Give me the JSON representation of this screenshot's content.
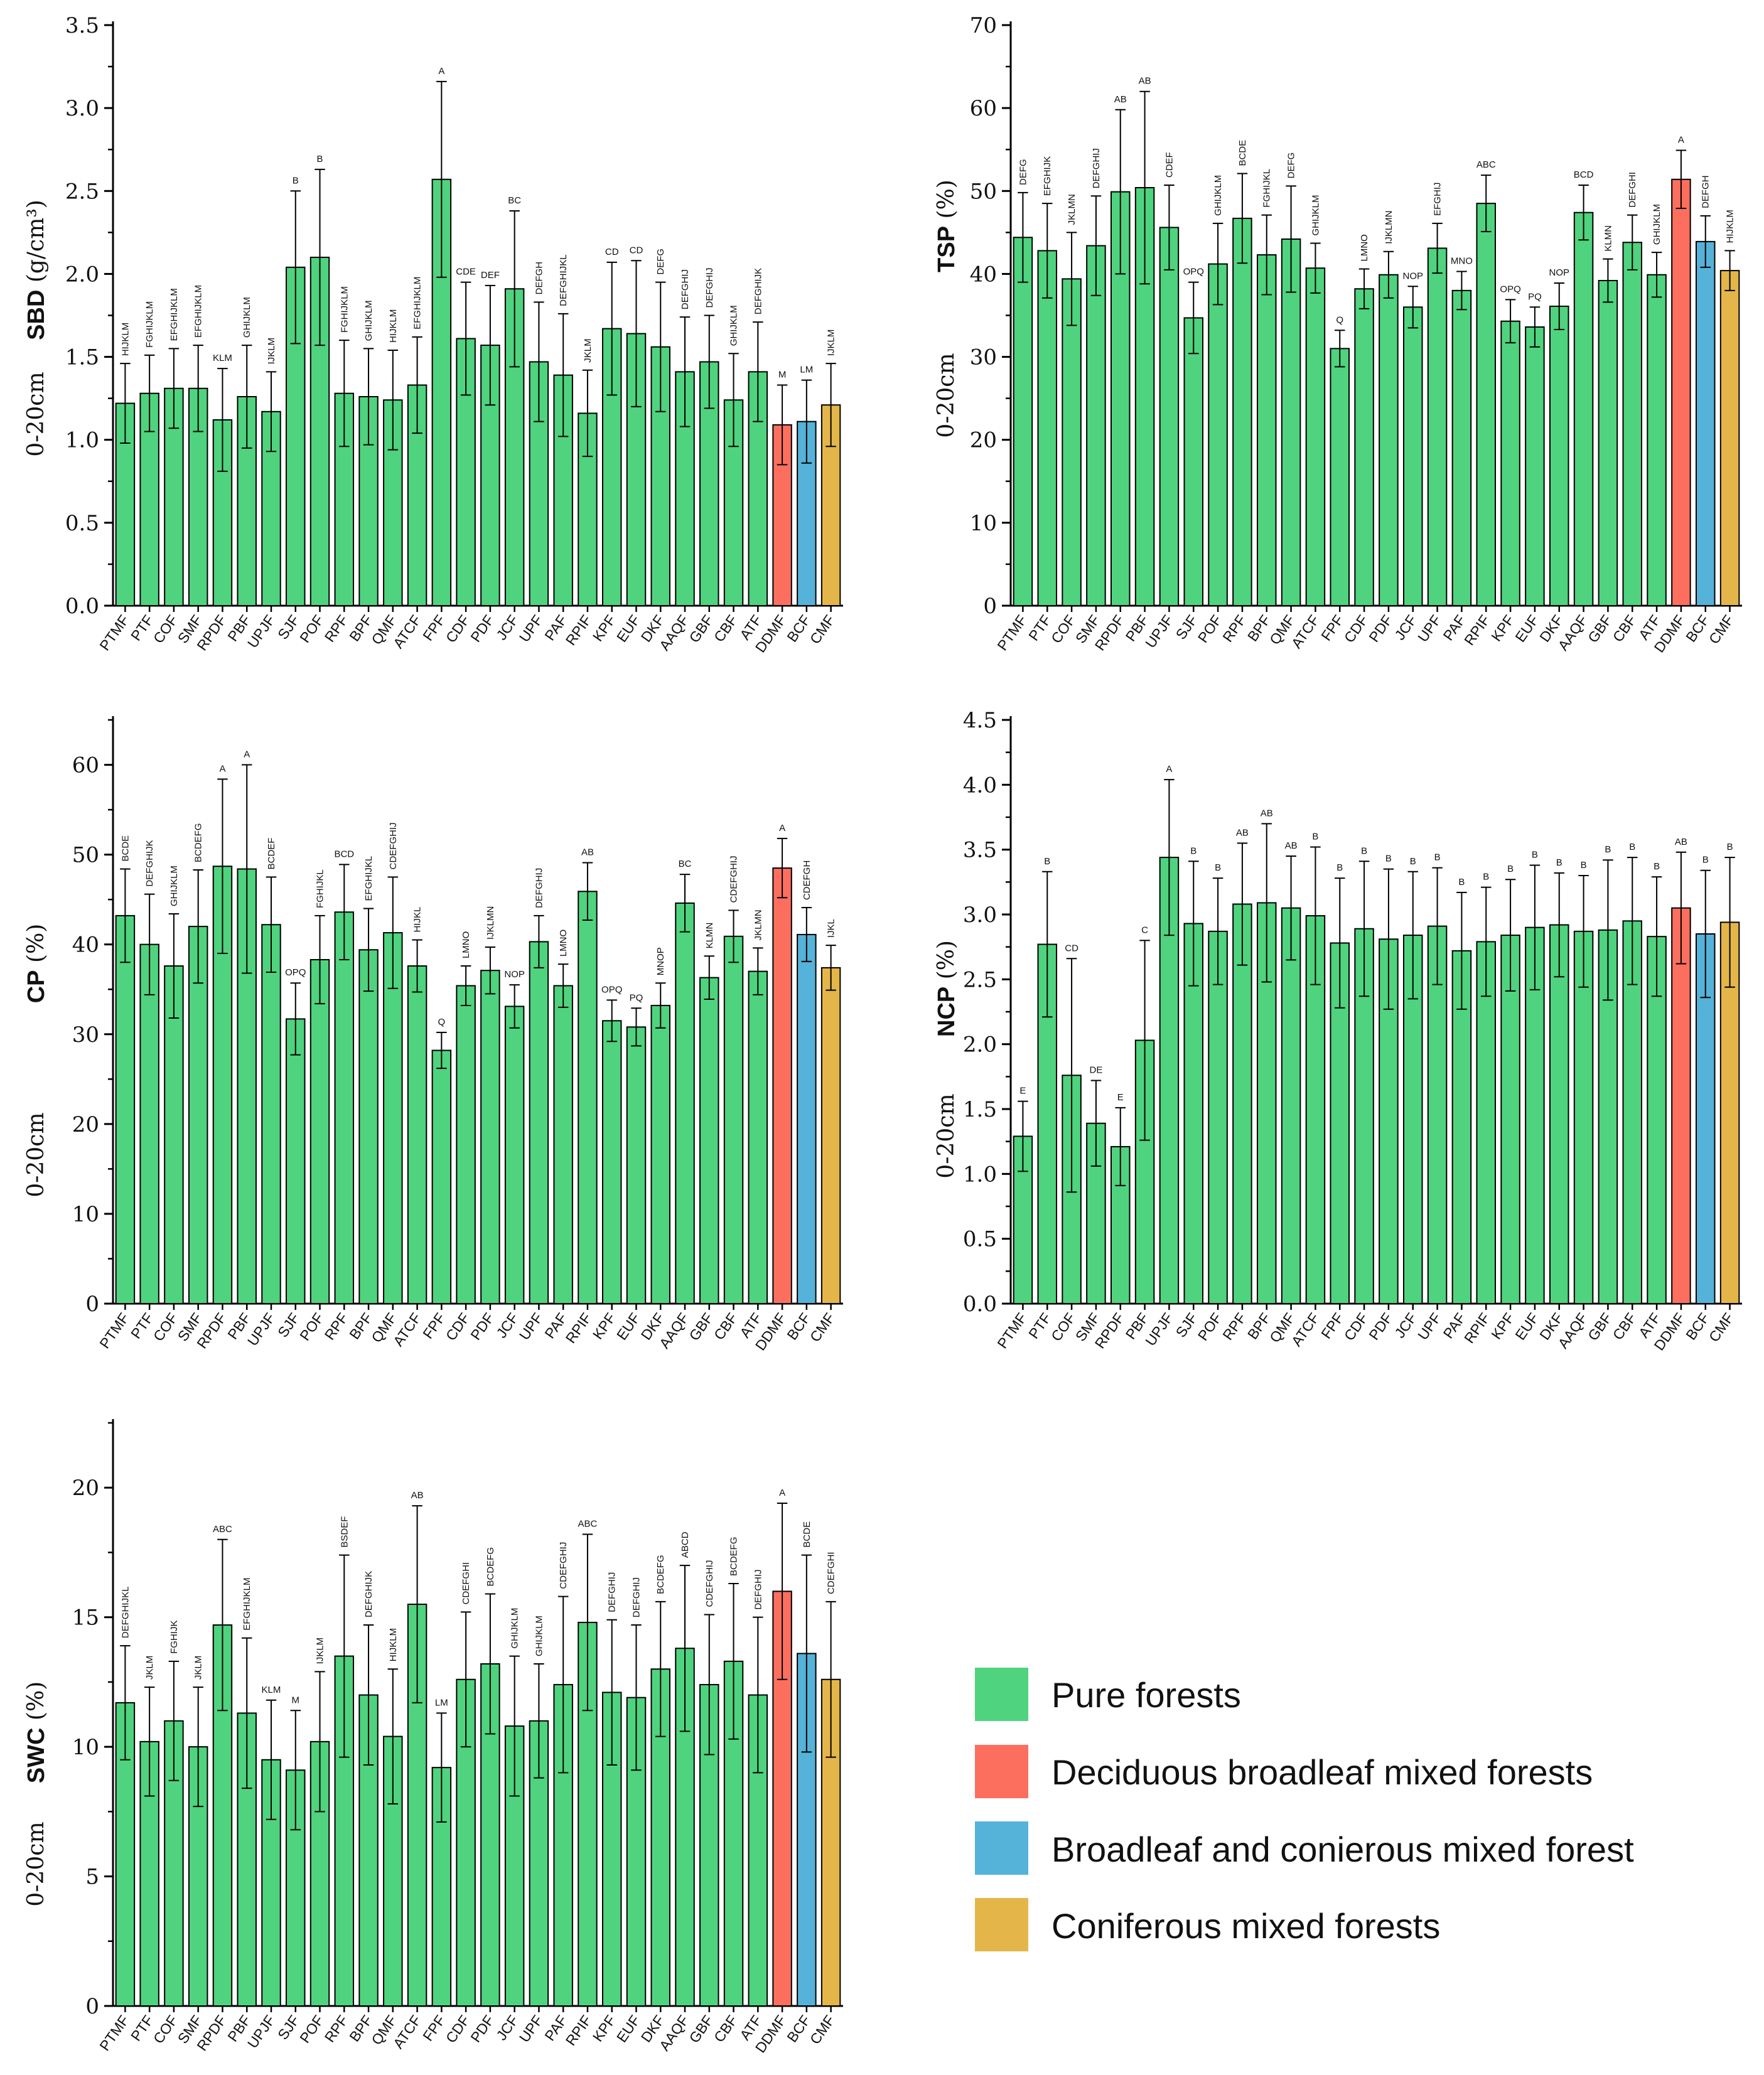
{
  "categories": [
    "PTMF",
    "PTF",
    "COF",
    "SMF",
    "RPDF",
    "PBF",
    "UPJF",
    "SJF",
    "POF",
    "RPF",
    "BPF",
    "QMF",
    "ATCF",
    "FPF",
    "CDF",
    "PDF",
    "JCF",
    "UPF",
    "PAF",
    "RPIF",
    "KPF",
    "EUF",
    "DKF",
    "AAQF",
    "GBF",
    "CBF",
    "ATF",
    "DDMF",
    "BCF",
    "CMF"
  ],
  "colors": {
    "pure": "#4fd37e",
    "deciduous": "#fc6f5f",
    "broadleaf_coniferous": "#55b2d8",
    "coniferous": "#e4b64a",
    "axis": "#000000"
  },
  "groups": [
    "pure",
    "pure",
    "pure",
    "pure",
    "pure",
    "pure",
    "pure",
    "pure",
    "pure",
    "pure",
    "pure",
    "pure",
    "pure",
    "pure",
    "pure",
    "pure",
    "pure",
    "pure",
    "pure",
    "pure",
    "pure",
    "pure",
    "pure",
    "pure",
    "pure",
    "pure",
    "pure",
    "deciduous",
    "broadleaf_coniferous",
    "coniferous"
  ],
  "legend": [
    {
      "label": "Pure forests",
      "color": "#4fd37e"
    },
    {
      "label": "Deciduous broadleaf mixed forests",
      "color": "#fc6f5f"
    },
    {
      "label": "Broadleaf and conierous mixed forest",
      "color": "#55b2d8"
    },
    {
      "label": "Coniferous mixed forests",
      "color": "#e4b64a"
    }
  ],
  "chart_data": [
    {
      "id": "sbd",
      "type": "bar",
      "ylabel_bold": "SBD",
      "ylabel_unit": "(g/cm³)",
      "ylabel_depth": "0-20cm",
      "ylim": [
        0,
        3.5
      ],
      "yticks": [
        "0.0",
        "0.5",
        "1.0",
        "1.5",
        "2.0",
        "2.5",
        "3.0",
        "3.5"
      ],
      "ytick_step": 0.5,
      "values": [
        1.22,
        1.28,
        1.31,
        1.31,
        1.12,
        1.26,
        1.17,
        2.04,
        2.1,
        1.28,
        1.26,
        1.24,
        1.33,
        2.57,
        1.61,
        1.57,
        1.91,
        1.47,
        1.39,
        1.16,
        1.67,
        1.64,
        1.56,
        1.41,
        1.47,
        1.24,
        1.41,
        1.09,
        1.11,
        1.21
      ],
      "errors": [
        0.24,
        0.23,
        0.24,
        0.26,
        0.31,
        0.31,
        0.24,
        0.46,
        0.53,
        0.32,
        0.29,
        0.3,
        0.29,
        0.59,
        0.34,
        0.36,
        0.47,
        0.36,
        0.37,
        0.26,
        0.4,
        0.44,
        0.39,
        0.33,
        0.28,
        0.28,
        0.3,
        0.24,
        0.25,
        0.25
      ],
      "labels": [
        "HIJKLM",
        "FGHIJKLM",
        "EFGHIJKLM",
        "EFGHIJKLM",
        "KLM",
        "GHIJKLM",
        "IJKLM",
        "B",
        "B",
        "FGHIJKLM",
        "GHIJKLM",
        "HIJKLM",
        "EFGHIJKLM",
        "A",
        "CDE",
        "DEF",
        "BC",
        "DEFGH",
        "DEFGHIJKL",
        "JKLM",
        "CD",
        "CD",
        "DEFG",
        "DEFGHIJ",
        "DEFGHIJ",
        "GHIJKLM",
        "DEFGHIJK",
        "M",
        "LM",
        "IJKLM"
      ]
    },
    {
      "id": "tsp",
      "type": "bar",
      "ylabel_bold": "TSP",
      "ylabel_unit": "(%)",
      "ylabel_depth": "0-20cm",
      "ylim": [
        0,
        70
      ],
      "yticks": [
        "0",
        "10",
        "20",
        "30",
        "40",
        "50",
        "60",
        "70"
      ],
      "ytick_step": 10,
      "values": [
        44.4,
        42.8,
        39.4,
        43.4,
        49.9,
        50.4,
        45.6,
        34.7,
        41.2,
        46.7,
        42.3,
        44.2,
        40.7,
        31.0,
        38.2,
        39.9,
        36.0,
        43.1,
        38.0,
        48.5,
        34.3,
        33.6,
        36.1,
        47.4,
        39.2,
        43.8,
        39.9,
        51.4,
        43.9,
        40.4
      ],
      "errors": [
        5.4,
        5.7,
        5.6,
        6.0,
        9.9,
        11.6,
        5.1,
        4.3,
        4.9,
        5.4,
        4.8,
        6.4,
        3.0,
        2.2,
        2.4,
        2.8,
        2.5,
        3.0,
        2.3,
        3.4,
        2.6,
        2.4,
        2.8,
        3.3,
        2.6,
        3.3,
        2.7,
        3.5,
        3.1,
        2.4
      ],
      "labels": [
        "DEFG",
        "EFGHIJK",
        "JKLMN",
        "DEFGHIJ",
        "AB",
        "AB",
        "CDEF",
        "OPQ",
        "GHIJKLM",
        "BCDE",
        "FGHIJKL",
        "DEFG",
        "GHIJKLM",
        "Q",
        "LMNO",
        "IJKLMN",
        "NOP",
        "EFGHIJ",
        "MNO",
        "ABC",
        "OPQ",
        "PQ",
        "NOP",
        "BCD",
        "KLMN",
        "DEFGHI",
        "GHIJKLM",
        "A",
        "DEFGH",
        "HIJKLM"
      ]
    },
    {
      "id": "cp",
      "type": "bar",
      "ylabel_bold": "CP",
      "ylabel_unit": "(%)",
      "ylabel_depth": "0-20cm",
      "ylim": [
        0,
        65
      ],
      "yticks": [
        "0",
        "10",
        "20",
        "30",
        "40",
        "50",
        "60"
      ],
      "ytick_step": 10,
      "values": [
        43.2,
        40.0,
        37.6,
        42.0,
        48.7,
        48.4,
        42.2,
        31.7,
        38.3,
        43.6,
        39.4,
        41.3,
        37.6,
        28.2,
        35.4,
        37.1,
        33.1,
        40.3,
        35.4,
        45.9,
        31.5,
        30.8,
        33.2,
        44.6,
        36.3,
        40.9,
        37.0,
        48.5,
        41.1,
        37.4
      ],
      "errors": [
        5.2,
        5.6,
        5.8,
        6.3,
        9.7,
        11.6,
        5.3,
        4.0,
        4.9,
        5.3,
        4.6,
        6.2,
        2.9,
        2.0,
        2.2,
        2.6,
        2.4,
        2.9,
        2.4,
        3.2,
        2.3,
        2.1,
        2.5,
        3.2,
        2.4,
        2.9,
        2.6,
        3.3,
        3.0,
        2.5
      ],
      "labels": [
        "BCDE",
        "DEFGHIJK",
        "GHIJKLM",
        "BCDEFG",
        "A",
        "A",
        "BCDEF",
        "OPQ",
        "FGHIJKL",
        "BCD",
        "EFGHIJKL",
        "CDEFGHIJ",
        "HIJKL",
        "Q",
        "LMNO",
        "IJKLMN",
        "NOP",
        "DEFGHIJ",
        "LMNO",
        "AB",
        "OPQ",
        "PQ",
        "MNOP",
        "BC",
        "KLMN",
        "CDEFGHIJ",
        "JKLMN",
        "A",
        "CDEFGH",
        "IJKL"
      ]
    },
    {
      "id": "ncp",
      "type": "bar",
      "ylabel_bold": "NCP",
      "ylabel_unit": "(%)",
      "ylabel_depth": "0-20cm",
      "ylim": [
        0,
        4.5
      ],
      "yticks": [
        "0.0",
        "0.5",
        "1.0",
        "1.5",
        "2.0",
        "2.5",
        "3.0",
        "3.5",
        "4.0",
        "4.5"
      ],
      "ytick_step": 0.5,
      "values": [
        1.29,
        2.77,
        1.76,
        1.39,
        1.21,
        2.03,
        3.44,
        2.93,
        2.87,
        3.08,
        3.09,
        3.05,
        2.99,
        2.78,
        2.89,
        2.81,
        2.84,
        2.91,
        2.72,
        2.79,
        2.84,
        2.9,
        2.92,
        2.87,
        2.88,
        2.95,
        2.83,
        3.05,
        2.85,
        2.94
      ],
      "errors": [
        0.27,
        0.56,
        0.9,
        0.33,
        0.3,
        0.77,
        0.6,
        0.48,
        0.41,
        0.47,
        0.61,
        0.4,
        0.53,
        0.5,
        0.52,
        0.54,
        0.49,
        0.45,
        0.45,
        0.42,
        0.43,
        0.48,
        0.4,
        0.43,
        0.54,
        0.49,
        0.46,
        0.43,
        0.49,
        0.5
      ],
      "labels": [
        "E",
        "B",
        "CD",
        "DE",
        "E",
        "C",
        "A",
        "B",
        "B",
        "AB",
        "AB",
        "AB",
        "B",
        "B",
        "B",
        "B",
        "B",
        "B",
        "B",
        "B",
        "B",
        "B",
        "B",
        "B",
        "B",
        "B",
        "B",
        "AB",
        "B",
        "B"
      ]
    },
    {
      "id": "swc",
      "type": "bar",
      "ylabel_bold": "SWC",
      "ylabel_unit": "(%)",
      "ylabel_depth": "0-20cm",
      "ylim": [
        0,
        22.5
      ],
      "yticks": [
        "0",
        "5",
        "10",
        "15",
        "20"
      ],
      "ytick_step": 5,
      "values": [
        11.7,
        10.2,
        11.0,
        10.0,
        14.7,
        11.3,
        9.5,
        9.1,
        10.2,
        13.5,
        12.0,
        10.4,
        15.5,
        9.2,
        12.6,
        13.2,
        10.8,
        11.0,
        12.4,
        14.8,
        12.1,
        11.9,
        13.0,
        13.8,
        12.4,
        13.3,
        12.0,
        16.0,
        13.6,
        12.6
      ],
      "errors": [
        2.2,
        2.1,
        2.3,
        2.3,
        3.3,
        2.9,
        2.3,
        2.3,
        2.7,
        3.9,
        2.7,
        2.6,
        3.8,
        2.1,
        2.6,
        2.7,
        2.7,
        2.2,
        3.4,
        3.4,
        2.8,
        2.8,
        2.6,
        3.2,
        2.7,
        3.0,
        3.0,
        3.4,
        3.8,
        3.0
      ],
      "labels": [
        "DEFGHIJKL",
        "JKLM",
        "FGHIJK",
        "JKLM",
        "ABC",
        "EFGHIJKLM",
        "KLM",
        "M",
        "IJKLM",
        "BSDEF",
        "DEFGHIJK",
        "HIJKLM",
        "AB",
        "LM",
        "CDEFGHI",
        "BCDEFG",
        "GHIJKLM",
        "GHIJKLM",
        "CDEFGHIJ",
        "ABC",
        "DEFGHIJ",
        "DEFGHIJ",
        "BCDEFG",
        "ABCD",
        "CDEFGHIJ",
        "BCDEFG",
        "DEFGHIJ",
        "A",
        "BCDE",
        "CDEFGHI"
      ]
    }
  ]
}
